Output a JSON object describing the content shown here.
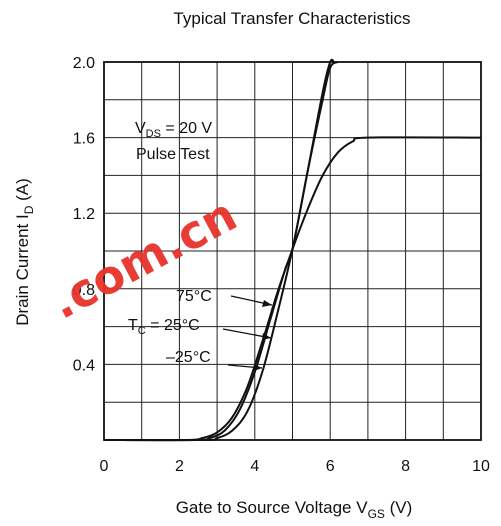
{
  "chart_data": {
    "type": "line",
    "title": "Typical Transfer Characteristics",
    "xlabel": {
      "main": "Gate to Source Voltage  V",
      "sub": "GS",
      "unit": "  (V)"
    },
    "ylabel": {
      "main": "Drain Current  I",
      "sub": "D",
      "unit": "  (A)"
    },
    "xlim": [
      0,
      10
    ],
    "ylim": [
      0,
      2.0
    ],
    "xticks": [
      "0",
      "2",
      "4",
      "6",
      "8",
      "10"
    ],
    "yticks": [
      "0.4",
      "0.8",
      "1.2",
      "1.6",
      "2.0"
    ],
    "grid": true,
    "conditions": {
      "line1_pre": "V",
      "line1_sub": "DS",
      "line1_post": " = 20 V",
      "line2": "Pulse Test"
    },
    "series": [
      {
        "name": "75°C",
        "x": [
          0,
          2.2,
          2.6,
          3.0,
          3.4,
          3.8,
          4.2,
          4.6,
          5.0,
          5.4,
          5.8,
          6.2,
          6.6,
          7.0,
          10
        ],
        "y": [
          0,
          0,
          0.01,
          0.04,
          0.12,
          0.28,
          0.52,
          0.78,
          1.01,
          1.22,
          1.4,
          1.52,
          1.58,
          1.6,
          1.6
        ]
      },
      {
        "name": "25°C",
        "x": [
          0,
          2.4,
          2.8,
          3.2,
          3.6,
          4.0,
          4.4,
          4.8,
          5.0,
          5.4,
          5.8,
          6.0,
          6.2
        ],
        "y": [
          0,
          0,
          0.01,
          0.05,
          0.16,
          0.36,
          0.63,
          0.9,
          1.01,
          1.42,
          1.8,
          1.97,
          2.0
        ]
      },
      {
        "name": "−25°C",
        "x": [
          0,
          2.6,
          3.0,
          3.4,
          3.8,
          4.2,
          4.6,
          5.0,
          5.4,
          5.8,
          6.0,
          6.1
        ],
        "y": [
          0,
          0,
          0.01,
          0.05,
          0.15,
          0.36,
          0.67,
          1.01,
          1.42,
          1.84,
          2.0,
          2.0
        ]
      }
    ],
    "annotations": [
      {
        "text": "75°C",
        "series": "75°C"
      },
      {
        "text_pre": "T",
        "text_sub": "C",
        "text_post": " = 25°C",
        "series": "25°C"
      },
      {
        "text": "–25°C",
        "series": "−25°C"
      }
    ],
    "watermark": ".com.cn"
  }
}
